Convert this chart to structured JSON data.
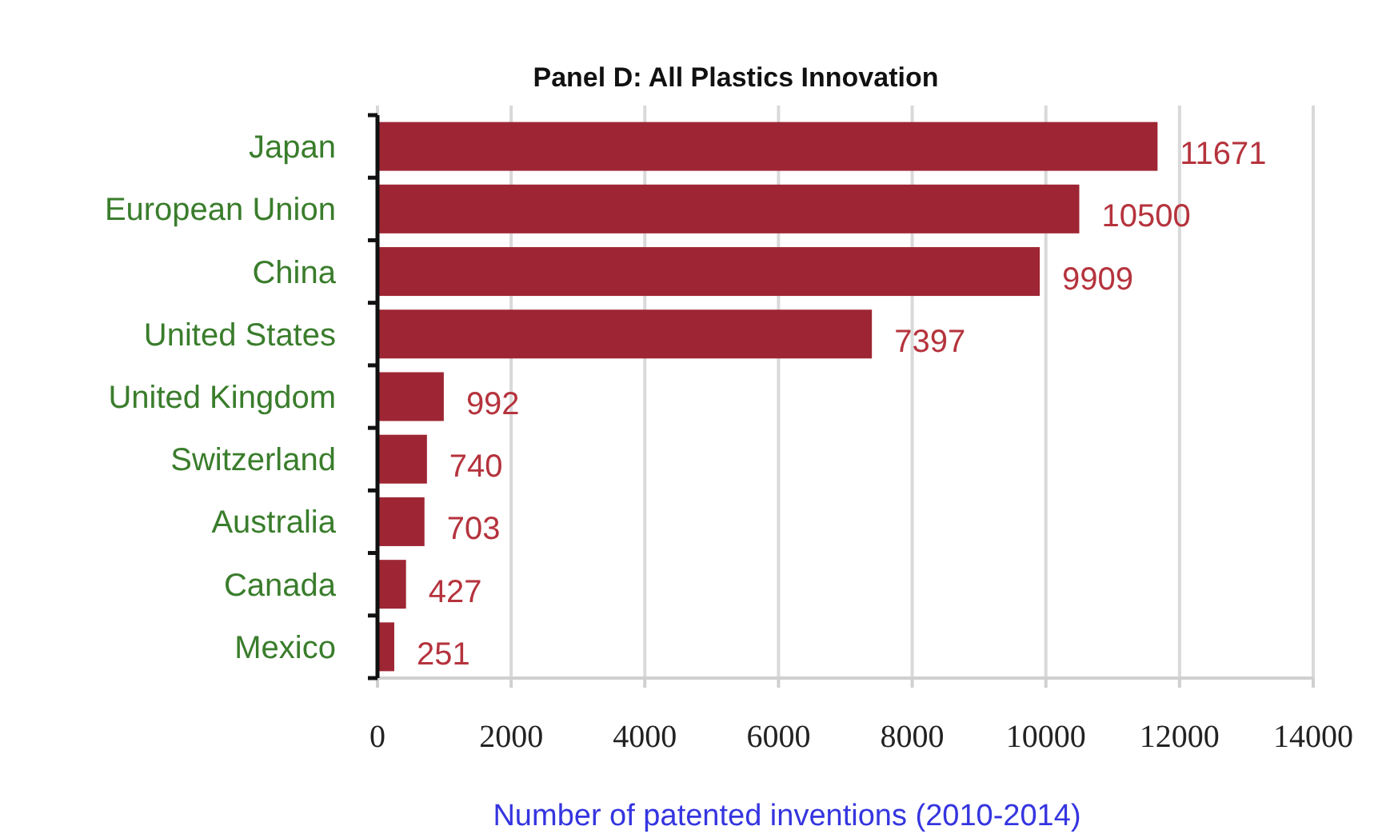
{
  "chart_data": {
    "type": "bar",
    "orientation": "horizontal",
    "title": "Panel D: All Plastics Innovation",
    "xlabel": "Number of patented inventions (2010-2014)",
    "categories": [
      "Japan",
      "European Union",
      "China",
      "United States",
      "United Kingdom",
      "Switzerland",
      "Australia",
      "Canada",
      "Mexico"
    ],
    "values": [
      11671,
      10500,
      9909,
      7397,
      992,
      740,
      703,
      427,
      251
    ],
    "color": "#9e2634",
    "xlim": [
      0,
      14000
    ],
    "xticks": [
      0,
      2000,
      4000,
      6000,
      8000,
      10000,
      12000,
      14000
    ],
    "grid": "x",
    "data_labels": true
  }
}
